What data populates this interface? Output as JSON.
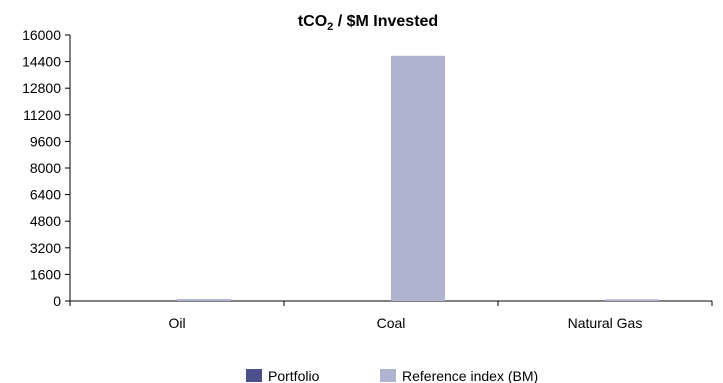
{
  "chart_data": {
    "type": "bar",
    "title_main": "tCO",
    "title_sub": "2",
    "title_rest": " / $M Invested",
    "categories": [
      "Oil",
      "Coal",
      "Natural Gas"
    ],
    "series": [
      {
        "name": "Portfolio",
        "values": [
          0,
          0,
          0
        ],
        "color": "#4b4f8c"
      },
      {
        "name": "Reference index (BM)",
        "values": [
          120,
          14750,
          100
        ],
        "color": "#b0b3cf"
      }
    ],
    "yticks": [
      "0",
      "1600",
      "3200",
      "4800",
      "6400",
      "8000",
      "9600",
      "11200",
      "12800",
      "14400",
      "16000"
    ],
    "ylim": [
      0,
      16000
    ],
    "grid": false,
    "legend_position": "bottom-center"
  }
}
